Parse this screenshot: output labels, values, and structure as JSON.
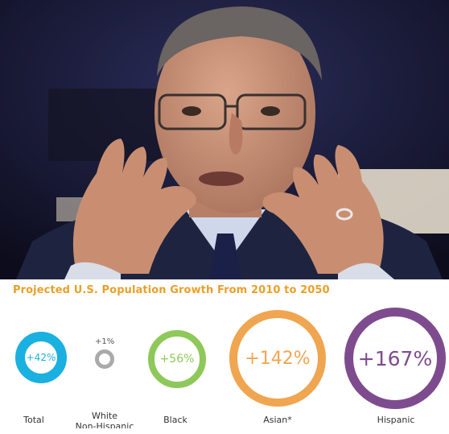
{
  "infographic": {
    "title": "Projected U.S. Population Growth From 2010 to 2050",
    "groups": [
      {
        "value": "+42%",
        "label": "Total",
        "color": "#1ab0e0",
        "growth_percent": 42
      },
      {
        "value": "+1%",
        "label_line1": "White",
        "label_line2": "Non-Hispanic",
        "color": "#aaaaaa",
        "growth_percent": 1
      },
      {
        "value": "+56%",
        "label": "Black",
        "color": "#8fc85a",
        "growth_percent": 56
      },
      {
        "value": "+142%",
        "label": "Asian*",
        "color": "#f0a550",
        "growth_percent": 142
      },
      {
        "value": "+167%",
        "label": "Hispanic",
        "color": "#7e4c8e",
        "growth_percent": 167
      }
    ]
  }
}
